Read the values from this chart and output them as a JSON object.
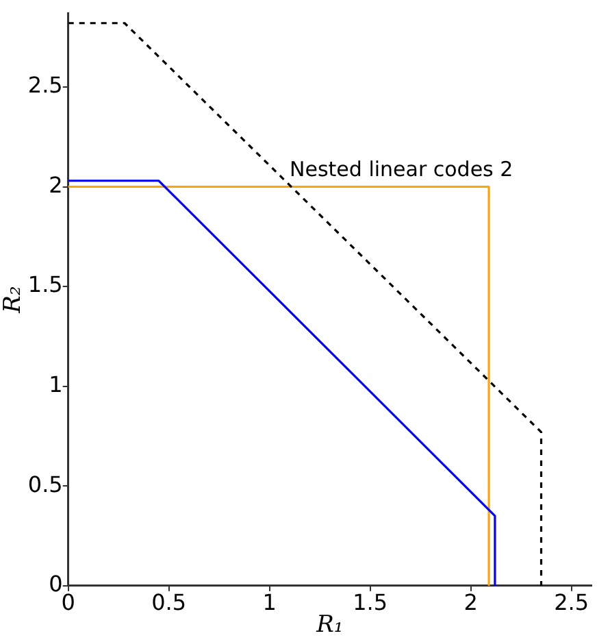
{
  "chart_data": {
    "type": "line",
    "xlabel": "R₁",
    "ylabel": "R₂",
    "xlim": [
      0,
      2.6
    ],
    "ylim": [
      0,
      2.87
    ],
    "xticks": [
      0,
      0.5,
      1,
      1.5,
      2,
      2.5
    ],
    "yticks": [
      0,
      0.5,
      1,
      1.5,
      2,
      2.5
    ],
    "marker": "none",
    "legend": false,
    "series": [
      {
        "color": "#000000",
        "line_style": "dashed",
        "x": [
          0,
          0.28,
          2.35,
          2.35
        ],
        "values": [
          2.82,
          2.82,
          0.77,
          0
        ]
      },
      {
        "color": "#0000ff",
        "line_style": "solid",
        "x": [
          0,
          0.45,
          2.12,
          2.12
        ],
        "values": [
          2.03,
          2.03,
          0.35,
          0
        ]
      },
      {
        "color": "#ffa500",
        "line_style": "solid",
        "x": [
          0,
          2.09,
          2.09
        ],
        "values": [
          2.0,
          2.0,
          0
        ]
      }
    ],
    "annotations": [
      {
        "text": "Nested linear codes 2",
        "x": 1.1,
        "y": 2.03
      }
    ]
  }
}
